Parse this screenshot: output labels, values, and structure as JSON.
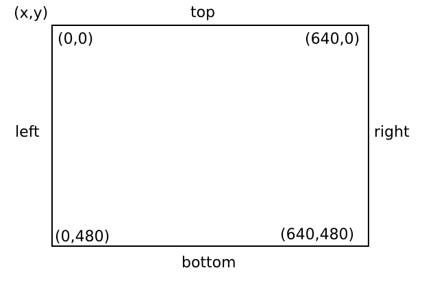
{
  "legend": "(x,y)",
  "sides": {
    "top": "top",
    "bottom": "bottom",
    "left": "left",
    "right": "right"
  },
  "corners": {
    "top_left": "(0,0)",
    "top_right": "(640,0)",
    "bottom_left": "(0,480)",
    "bottom_right": "(640,480)"
  },
  "colors": {
    "stroke": "#000000",
    "text": "#000000",
    "background": "#ffffff"
  }
}
